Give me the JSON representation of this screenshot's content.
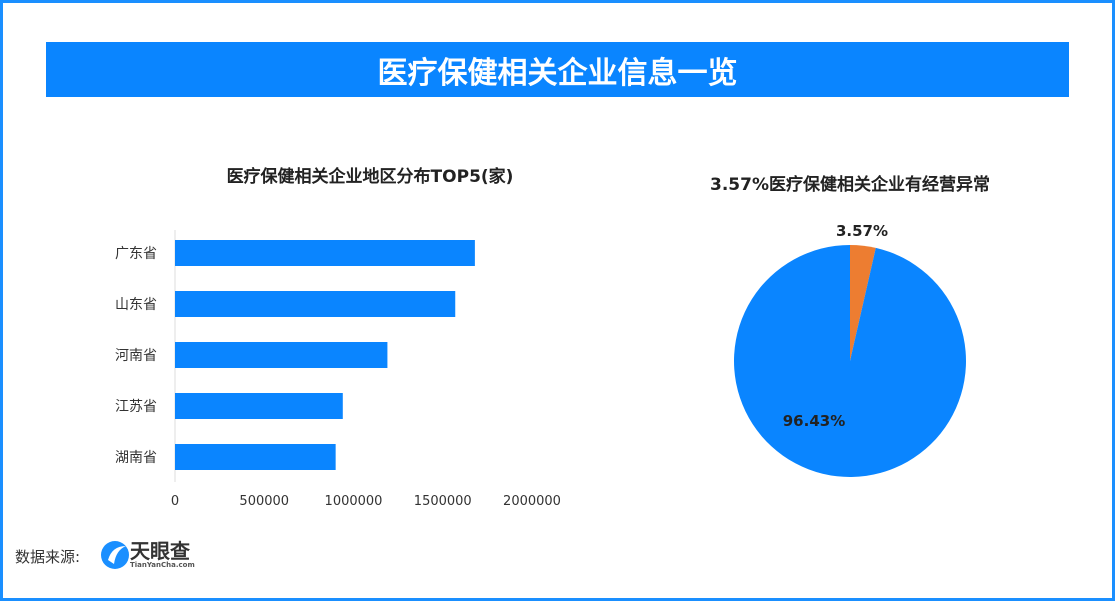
{
  "header": {
    "title": "医疗保健相关企业信息一览"
  },
  "footer": {
    "source_label": "数据来源:",
    "logo_cn": "天眼查",
    "logo_en": "TianYanCha.com"
  },
  "colors": {
    "accent": "#0a85ff",
    "orange": "#ed7d31"
  },
  "chart_data": [
    {
      "type": "bar",
      "orientation": "horizontal",
      "title": "医疗保健相关企业地区分布TOP5(家)",
      "categories": [
        "广东省",
        "山东省",
        "河南省",
        "江苏省",
        "湖南省"
      ],
      "values": [
        1680000,
        1570000,
        1190000,
        940000,
        900000
      ],
      "xlim": [
        0,
        2000000
      ],
      "xticks": [
        "0",
        "500000",
        "1000000",
        "1500000",
        "2000000"
      ],
      "grid": false
    },
    {
      "type": "pie",
      "title": "3.57%医疗保健相关企业有经营异常",
      "slices": [
        {
          "label": "3.57%",
          "value": 3.57,
          "color": "#ed7d31"
        },
        {
          "label": "96.43%",
          "value": 96.43,
          "color": "#0a85ff"
        }
      ]
    }
  ]
}
